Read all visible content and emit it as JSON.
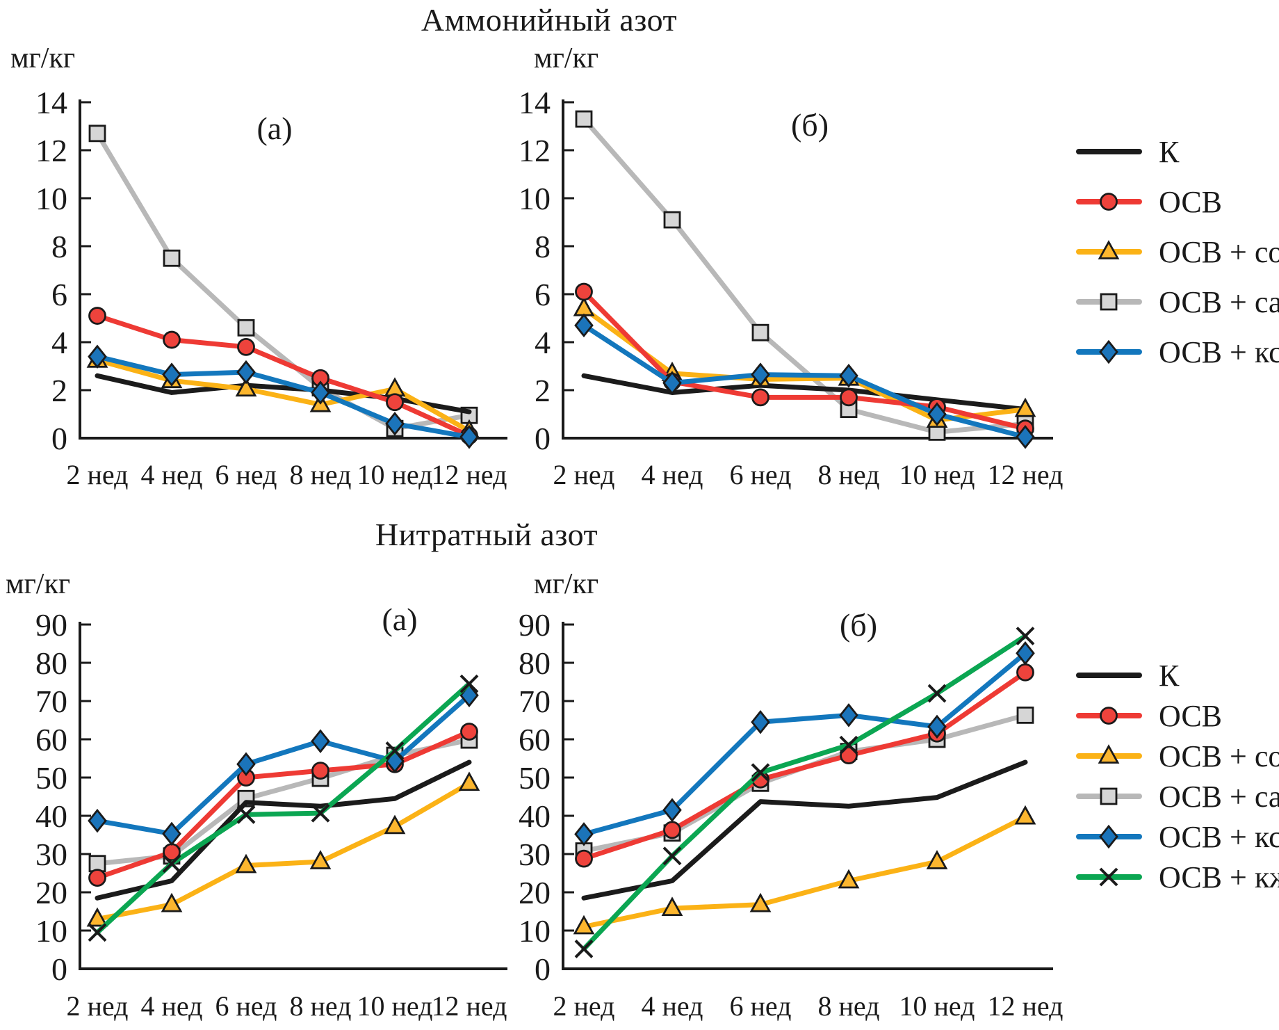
{
  "titles": {
    "ammonium": "Аммонийный азот",
    "nitrate": "Нитратный азот"
  },
  "legend_top": {
    "items": [
      {
        "key": "k",
        "label": "К",
        "color": "#1b1b1b",
        "marker": "none",
        "marker_fill": null
      },
      {
        "key": "osv",
        "label": "ОСВ",
        "color": "#ee3a34",
        "marker": "circle",
        "marker_fill": "#ee433c"
      },
      {
        "key": "osv-sol",
        "label": "ОСВ + сол",
        "color": "#fbb216",
        "marker": "triangle",
        "marker_fill": "#fcb62e"
      },
      {
        "key": "osv-sap",
        "label": "ОСВ + сап",
        "color": "#b8b8b8",
        "marker": "square",
        "marker_fill": "#d6d6d6"
      },
      {
        "key": "osv-ks",
        "label": "ОСВ + кс",
        "color": "#1377bd",
        "marker": "diamond",
        "marker_fill": "#1b74ba"
      }
    ]
  },
  "legend_bottom": {
    "items": [
      {
        "key": "k",
        "label": "К",
        "color": "#1b1b1b",
        "marker": "none",
        "marker_fill": null
      },
      {
        "key": "osv",
        "label": "ОСВ",
        "color": "#ee3a34",
        "marker": "circle",
        "marker_fill": "#ee433c"
      },
      {
        "key": "osv-sol",
        "label": "ОСВ + сол",
        "color": "#fbb216",
        "marker": "triangle",
        "marker_fill": "#fcb62e"
      },
      {
        "key": "osv-sap",
        "label": "ОСВ + сап",
        "color": "#b8b8b8",
        "marker": "square",
        "marker_fill": "#d6d6d6"
      },
      {
        "key": "osv-ks",
        "label": "ОСВ + кс",
        "color": "#1377bd",
        "marker": "diamond",
        "marker_fill": "#1b74ba"
      },
      {
        "key": "osv-kzh",
        "label": "ОСВ + кж",
        "color": "#0ba652",
        "marker": "x",
        "marker_fill": null
      }
    ]
  },
  "chart_data": [
    {
      "id": "ammonium-a",
      "type": "line",
      "section": "Аммонийный азот",
      "panel": "(а)",
      "ylabel": "мг/кг",
      "ylim": [
        0,
        14
      ],
      "yticks": [
        0,
        2,
        4,
        6,
        8,
        10,
        12,
        14
      ],
      "grid": false,
      "categories": [
        "2 нед",
        "4 нед",
        "6 нед",
        "8 нед",
        "10 нед",
        "12 нед"
      ],
      "series": [
        {
          "key": "k",
          "name": "К",
          "color": "#1b1b1b",
          "marker": "none",
          "marker_fill": null,
          "values": [
            2.6,
            1.9,
            2.2,
            2.0,
            1.65,
            1.1
          ]
        },
        {
          "key": "osv",
          "name": "ОСВ",
          "color": "#ee3a34",
          "marker": "circle",
          "marker_fill": "#ee433c",
          "values": [
            5.1,
            4.1,
            3.8,
            2.5,
            1.5,
            0.1
          ]
        },
        {
          "key": "osv-sol",
          "name": "ОСВ + сол",
          "color": "#fbb216",
          "marker": "triangle",
          "marker_fill": "#fcb62e",
          "values": [
            3.25,
            2.4,
            2.05,
            1.4,
            2.05,
            0.3
          ]
        },
        {
          "key": "osv-sap",
          "name": "ОСВ + сап",
          "color": "#b8b8b8",
          "marker": "square",
          "marker_fill": "#d6d6d6",
          "values": [
            12.7,
            7.5,
            4.6,
            2.1,
            0.4,
            0.95
          ]
        },
        {
          "key": "osv-ks",
          "name": "ОСВ + кс",
          "color": "#1377bd",
          "marker": "diamond",
          "marker_fill": "#1b74ba",
          "values": [
            3.4,
            2.65,
            2.75,
            1.9,
            0.6,
            0.05
          ]
        }
      ]
    },
    {
      "id": "ammonium-b",
      "type": "line",
      "section": "Аммонийный азот",
      "panel": "(б)",
      "ylabel": "мг/кг",
      "ylim": [
        0,
        14
      ],
      "yticks": [
        0,
        2,
        4,
        6,
        8,
        10,
        12,
        14
      ],
      "grid": false,
      "categories": [
        "2 нед",
        "4 нед",
        "6 нед",
        "8 нед",
        "10 нед",
        "12 нед"
      ],
      "series": [
        {
          "key": "k",
          "name": "К",
          "color": "#1b1b1b",
          "marker": "none",
          "marker_fill": null,
          "values": [
            2.6,
            1.9,
            2.2,
            2.0,
            1.6,
            1.2
          ]
        },
        {
          "key": "osv",
          "name": "ОСВ",
          "color": "#ee3a34",
          "marker": "circle",
          "marker_fill": "#ee433c",
          "values": [
            6.1,
            2.35,
            1.7,
            1.7,
            1.3,
            0.4
          ]
        },
        {
          "key": "osv-sol",
          "name": "ОСВ + сол",
          "color": "#fbb216",
          "marker": "triangle",
          "marker_fill": "#fcb62e",
          "values": [
            5.4,
            2.7,
            2.45,
            2.5,
            0.75,
            1.2
          ]
        },
        {
          "key": "osv-sap",
          "name": "ОСВ + сап",
          "color": "#b8b8b8",
          "marker": "square",
          "marker_fill": "#d6d6d6",
          "values": [
            13.3,
            9.1,
            4.4,
            1.2,
            0.25,
            0.6
          ]
        },
        {
          "key": "osv-ks",
          "name": "ОСВ + кс",
          "color": "#1377bd",
          "marker": "diamond",
          "marker_fill": "#1b74ba",
          "values": [
            4.7,
            2.3,
            2.65,
            2.6,
            1.0,
            0.05
          ]
        }
      ]
    },
    {
      "id": "nitrate-a",
      "type": "line",
      "section": "Нитратный азот",
      "panel": "(а)",
      "ylabel": "мг/кг",
      "ylim": [
        0,
        90
      ],
      "yticks": [
        0,
        10,
        20,
        30,
        40,
        50,
        60,
        70,
        80,
        90
      ],
      "grid": false,
      "categories": [
        "2 нед",
        "4 нед",
        "6 нед",
        "8 нед",
        "10 нед",
        "12 нед"
      ],
      "series": [
        {
          "key": "k",
          "name": "К",
          "color": "#1b1b1b",
          "marker": "none",
          "marker_fill": null,
          "values": [
            18.5,
            23,
            43.5,
            42.5,
            44.5,
            54
          ]
        },
        {
          "key": "osv",
          "name": "ОСВ",
          "color": "#ee3a34",
          "marker": "circle",
          "marker_fill": "#ee433c",
          "values": [
            23.8,
            30.5,
            50,
            51.8,
            53.5,
            62
          ]
        },
        {
          "key": "osv-sol",
          "name": "ОСВ + сол",
          "color": "#fbb216",
          "marker": "triangle",
          "marker_fill": "#fcb62e",
          "values": [
            13,
            16.8,
            27,
            28,
            37.2,
            48.5
          ]
        },
        {
          "key": "osv-sap",
          "name": "ОСВ + сап",
          "color": "#b8b8b8",
          "marker": "square",
          "marker_fill": "#d6d6d6",
          "values": [
            27.5,
            29.5,
            44.5,
            49.8,
            55.8,
            59.8
          ]
        },
        {
          "key": "osv-ks",
          "name": "ОСВ + кс",
          "color": "#1377bd",
          "marker": "diamond",
          "marker_fill": "#1b74ba",
          "values": [
            38.7,
            35.3,
            53.5,
            59.5,
            54.3,
            71.5
          ]
        },
        {
          "key": "osv-kzh",
          "name": "ОСВ + кж",
          "color": "#0ba652",
          "marker": "x",
          "marker_fill": null,
          "values": [
            9.5,
            27.5,
            40.3,
            40.7,
            57,
            74.5
          ]
        }
      ]
    },
    {
      "id": "nitrate-b",
      "type": "line",
      "section": "Нитратный азот",
      "panel": "(б)",
      "ylabel": "мг/кг",
      "ylim": [
        0,
        90
      ],
      "yticks": [
        0,
        10,
        20,
        30,
        40,
        50,
        60,
        70,
        80,
        90
      ],
      "grid": false,
      "categories": [
        "2 нед",
        "4 нед",
        "6 нед",
        "8 нед",
        "10 нед",
        "12 нед"
      ],
      "series": [
        {
          "key": "k",
          "name": "К",
          "color": "#1b1b1b",
          "marker": "none",
          "marker_fill": null,
          "values": [
            18.5,
            23,
            43.7,
            42.5,
            44.8,
            54
          ]
        },
        {
          "key": "osv",
          "name": "ОСВ",
          "color": "#ee3a34",
          "marker": "circle",
          "marker_fill": "#ee433c",
          "values": [
            28.8,
            36.3,
            49.5,
            55.8,
            61.5,
            77.5
          ]
        },
        {
          "key": "osv-sol",
          "name": "ОСВ + сол",
          "color": "#fbb216",
          "marker": "triangle",
          "marker_fill": "#fcb62e",
          "values": [
            11,
            15.8,
            16.8,
            23,
            28,
            39.7
          ]
        },
        {
          "key": "osv-sap",
          "name": "ОСВ + сап",
          "color": "#b8b8b8",
          "marker": "square",
          "marker_fill": "#d6d6d6",
          "values": [
            30.8,
            35.5,
            48.5,
            56.8,
            60,
            66.3
          ]
        },
        {
          "key": "osv-ks",
          "name": "ОСВ + кс",
          "color": "#1377bd",
          "marker": "diamond",
          "marker_fill": "#1b74ba",
          "values": [
            35.2,
            41.5,
            64.5,
            66.3,
            63.3,
            82.5
          ]
        },
        {
          "key": "osv-kzh",
          "name": "ОСВ + кж",
          "color": "#0ba652",
          "marker": "x",
          "marker_fill": null,
          "values": [
            5.2,
            29.5,
            51.3,
            58.5,
            72,
            87
          ]
        }
      ]
    }
  ]
}
